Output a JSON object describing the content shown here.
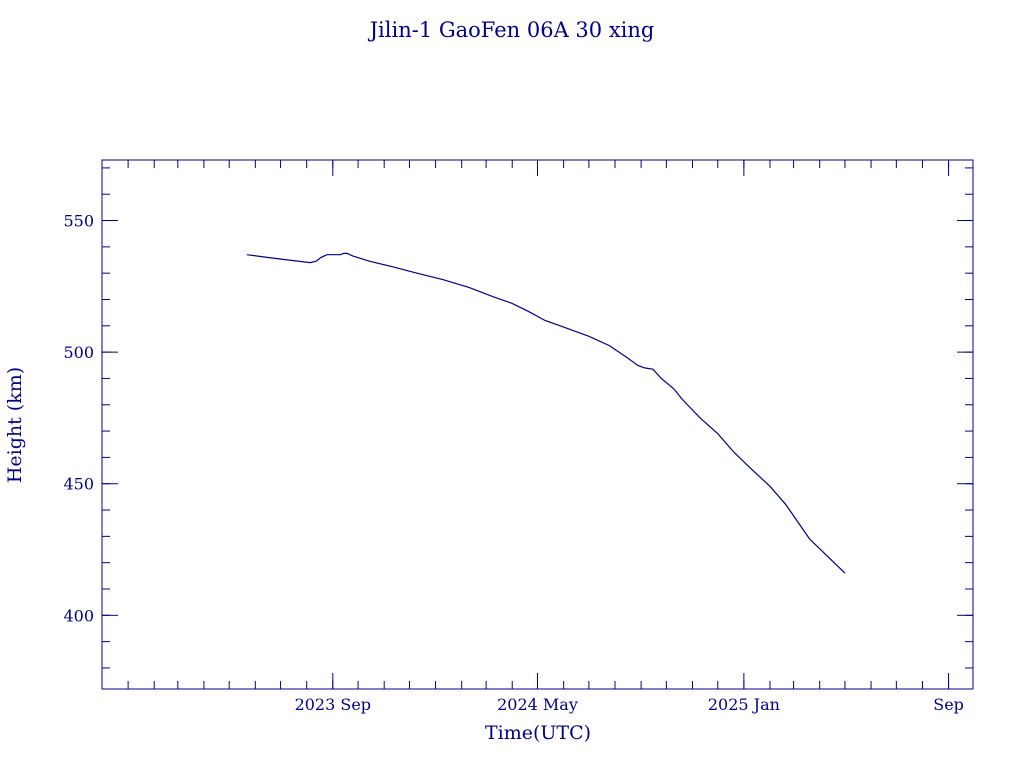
{
  "chart_data": {
    "type": "line",
    "title": "Jilin-1 GaoFen 06A 30 xing",
    "xlabel": "Time(UTC)",
    "ylabel": "Height (km)",
    "xlim": [
      "2022-12-01",
      "2025-09-30"
    ],
    "ylim": [
      372,
      573
    ],
    "grid": false,
    "legend": "none",
    "color": "#00008b",
    "yticks": [
      {
        "value": 400,
        "label": "400"
      },
      {
        "value": 450,
        "label": "450"
      },
      {
        "value": 500,
        "label": "500"
      },
      {
        "value": 550,
        "label": "550"
      }
    ],
    "xticks": [
      {
        "value": "2023-09-01",
        "label": "2023 Sep"
      },
      {
        "value": "2024-05-01",
        "label": "2024 May"
      },
      {
        "value": "2025-01-01",
        "label": "2025 Jan"
      },
      {
        "value": "2025-09-01",
        "label": "Sep"
      }
    ],
    "x": [
      "2023-05-22",
      "2023-06-15",
      "2023-07-10",
      "2023-08-05",
      "2023-08-12",
      "2023-08-18",
      "2023-08-25",
      "2023-09-02",
      "2023-09-10",
      "2023-09-14",
      "2023-09-18",
      "2023-09-25",
      "2023-10-15",
      "2023-11-10",
      "2023-12-10",
      "2024-01-10",
      "2024-02-10",
      "2024-03-10",
      "2024-04-01",
      "2024-04-20",
      "2024-05-10",
      "2024-06-01",
      "2024-07-01",
      "2024-07-25",
      "2024-08-15",
      "2024-08-28",
      "2024-09-05",
      "2024-09-15",
      "2024-09-25",
      "2024-10-10",
      "2024-10-20",
      "2024-11-10",
      "2024-12-01",
      "2024-12-20",
      "2025-01-10",
      "2025-02-01",
      "2025-02-20",
      "2025-03-05",
      "2025-03-20",
      "2025-04-10",
      "2025-05-01"
    ],
    "series": [
      {
        "values": [
          537.0,
          536.0,
          535.0,
          534.0,
          534.5,
          536.0,
          537.0,
          537.0,
          537.0,
          537.5,
          537.5,
          536.5,
          534.5,
          532.5,
          530.0,
          527.5,
          524.5,
          521.0,
          518.5,
          515.5,
          512.0,
          509.5,
          506.0,
          502.5,
          498.0,
          495.0,
          494.0,
          493.5,
          490.0,
          486.0,
          482.0,
          475.0,
          469.0,
          462.0,
          455.5,
          449.0,
          442.0,
          436.0,
          429.0,
          422.5,
          416.0
        ]
      }
    ]
  }
}
